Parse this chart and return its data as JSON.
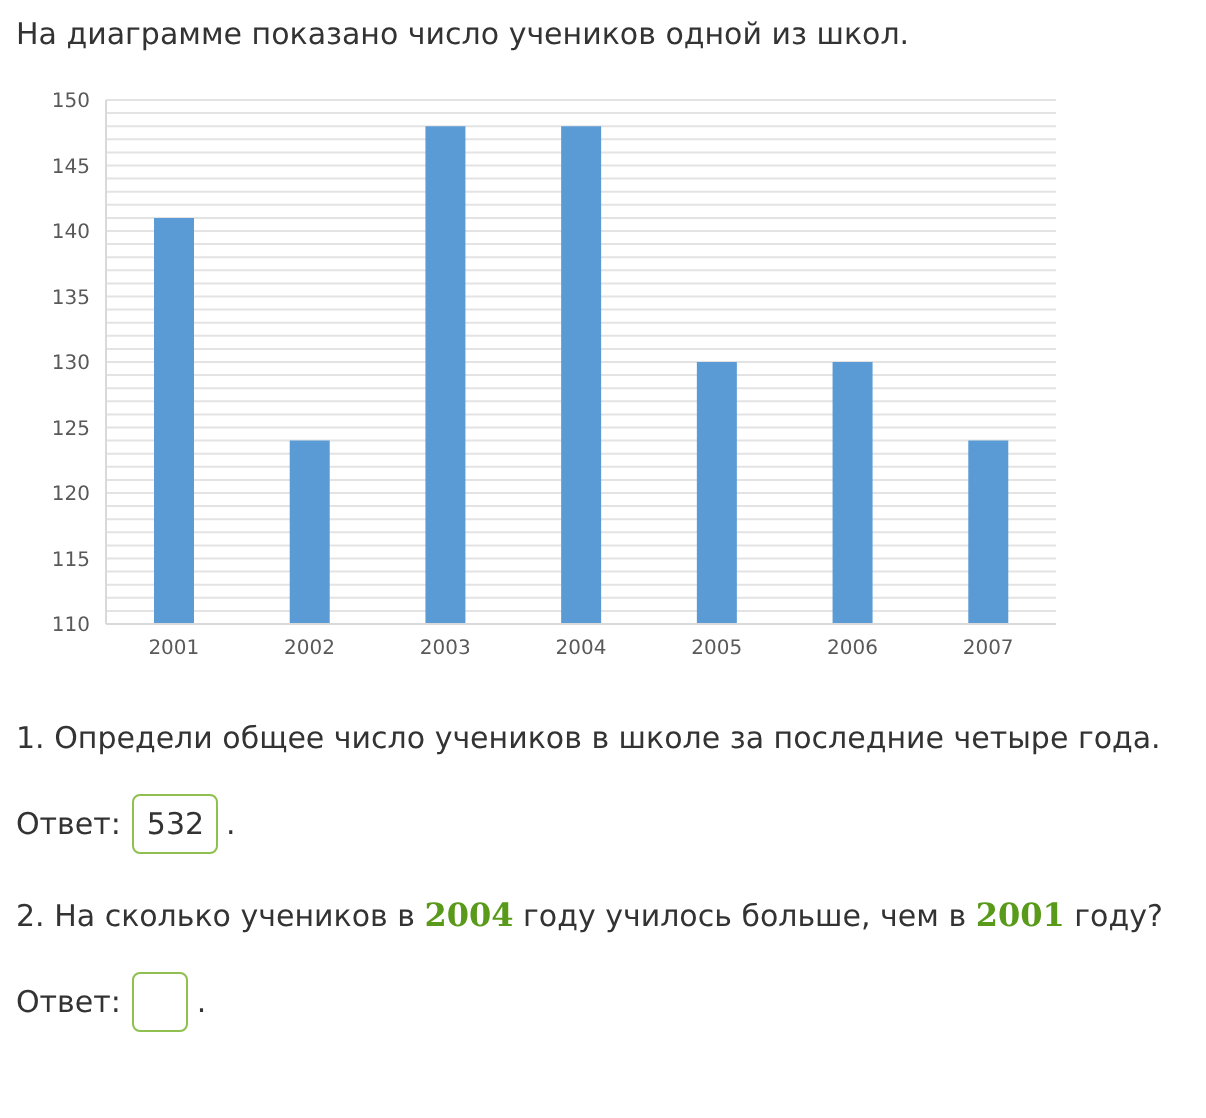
{
  "chart_data": {
    "type": "bar",
    "title": "На диаграмме показано число учеников одной из школ.",
    "categories": [
      "2001",
      "2002",
      "2003",
      "2004",
      "2005",
      "2006",
      "2007"
    ],
    "values": [
      141,
      124,
      148,
      148,
      130,
      130,
      124
    ],
    "color": "#5b9bd5",
    "ylim": [
      110,
      150
    ],
    "yticks": [
      110,
      {
        "value": 111,
        "label": null
      },
      {
        "value": 112,
        "label": null
      },
      {
        "value": 113,
        "label": null
      },
      {
        "value": 114,
        "label": null
      },
      115,
      {
        "value": 116,
        "label": null
      },
      {
        "value": 117,
        "label": null
      },
      {
        "value": 118,
        "label": null
      },
      {
        "value": 119,
        "label": null
      },
      120,
      {
        "value": 121,
        "label": null
      },
      {
        "value": 122,
        "label": null
      },
      {
        "value": 123,
        "label": null
      },
      {
        "value": 124,
        "label": null
      },
      125,
      {
        "value": 126,
        "label": null
      },
      {
        "value": 127,
        "label": null
      },
      {
        "value": 128,
        "label": null
      },
      {
        "value": 129,
        "label": null
      },
      130,
      {
        "value": 131,
        "label": null
      },
      {
        "value": 132,
        "label": null
      },
      {
        "value": 133,
        "label": null
      },
      {
        "value": 134,
        "label": null
      },
      135,
      {
        "value": 136,
        "label": null
      },
      {
        "value": 137,
        "label": null
      },
      {
        "value": 138,
        "label": null
      },
      {
        "value": 139,
        "label": null
      },
      140,
      {
        "value": 141,
        "label": null
      },
      {
        "value": 142,
        "label": null
      },
      {
        "value": 143,
        "label": null
      },
      {
        "value": 144,
        "label": null
      },
      145,
      {
        "value": 146,
        "label": null
      },
      {
        "value": 147,
        "label": null
      },
      {
        "value": 148,
        "label": null
      },
      {
        "value": 149,
        "label": null
      },
      150
    ],
    "grid": "y",
    "annotations": [
      "1. Определи общее число учеников в школе за последние четыре года.",
      "Ответ:",
      "532",
      ".",
      "2. На сколько учеников в 2004 году училось больше, чем в 2001 году?",
      "Ответ:",
      "."
    ]
  }
}
